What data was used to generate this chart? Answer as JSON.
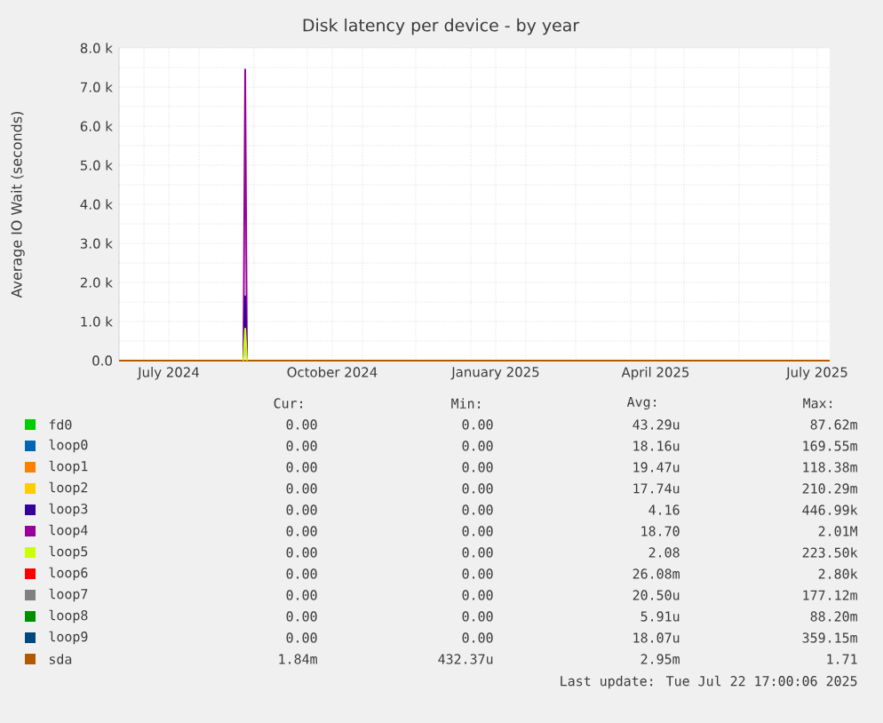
{
  "chart_data": {
    "type": "line",
    "title": "Disk latency per device - by year",
    "ylabel": "Average IO Wait (seconds)",
    "xlim": [
      "2024-06-17",
      "2025-07-22"
    ],
    "xticks": [
      {
        "value": "2024-07-01",
        "label": null
      },
      {
        "value": "2024-07-15",
        "label": "July 2024"
      },
      {
        "value": "2024-08-01",
        "label": null
      },
      {
        "value": "2024-09-01",
        "label": null
      },
      {
        "value": "2024-10-01",
        "label": null
      },
      {
        "value": "2024-10-15",
        "label": "October 2024"
      },
      {
        "value": "2024-11-01",
        "label": null
      },
      {
        "value": "2024-12-01",
        "label": null
      },
      {
        "value": "2025-01-01",
        "label": null
      },
      {
        "value": "2025-01-15",
        "label": "January 2025"
      },
      {
        "value": "2025-02-01",
        "label": null
      },
      {
        "value": "2025-03-01",
        "label": null
      },
      {
        "value": "2025-04-01",
        "label": null
      },
      {
        "value": "2025-04-15",
        "label": "April 2025"
      },
      {
        "value": "2025-05-01",
        "label": null
      },
      {
        "value": "2025-06-01",
        "label": null
      },
      {
        "value": "2025-07-01",
        "label": null
      },
      {
        "value": "2025-07-15",
        "label": "July 2025"
      }
    ],
    "ylim": [
      0,
      8000
    ],
    "yticks": [
      {
        "value": 0,
        "label": "0.0"
      },
      {
        "value": 500,
        "label": null
      },
      {
        "value": 1000,
        "label": "1.0 k"
      },
      {
        "value": 1500,
        "label": null
      },
      {
        "value": 2000,
        "label": "2.0 k"
      },
      {
        "value": 2500,
        "label": null
      },
      {
        "value": 3000,
        "label": "3.0 k"
      },
      {
        "value": 3500,
        "label": null
      },
      {
        "value": 4000,
        "label": "4.0 k"
      },
      {
        "value": 4500,
        "label": null
      },
      {
        "value": 5000,
        "label": "5.0 k"
      },
      {
        "value": 5500,
        "label": null
      },
      {
        "value": 6000,
        "label": "6.0 k"
      },
      {
        "value": 6500,
        "label": null
      },
      {
        "value": 7000,
        "label": "7.0 k"
      },
      {
        "value": 7500,
        "label": null
      },
      {
        "value": 8000,
        "label": "8.0 k"
      }
    ],
    "grid": true,
    "legend": "bottom",
    "marker": "none",
    "line_style": "solid",
    "series": [
      {
        "name": "fd0",
        "color": "#00cc00",
        "values": [
          null
        ]
      },
      {
        "name": "loop0",
        "color": "#0066b3",
        "values": [
          null
        ]
      },
      {
        "name": "loop1",
        "color": "#ff8000",
        "values": [
          null
        ]
      },
      {
        "name": "loop2",
        "color": "#ffcc00",
        "values": [
          null
        ]
      },
      {
        "name": "loop3",
        "color": "#330099",
        "x": [
          "2024-08-26",
          "2024-08-27",
          "2024-08-28"
        ],
        "values": [
          0,
          1650,
          0
        ]
      },
      {
        "name": "loop4",
        "color": "#990099",
        "x": [
          "2024-08-26",
          "2024-08-27",
          "2024-08-28"
        ],
        "values": [
          0,
          7450,
          0
        ]
      },
      {
        "name": "loop5",
        "color": "#ccff00",
        "x": [
          "2024-08-26",
          "2024-08-27",
          "2024-08-28"
        ],
        "values": [
          0,
          820,
          0
        ]
      },
      {
        "name": "loop6",
        "color": "#ff0000",
        "values": [
          null
        ]
      },
      {
        "name": "loop7",
        "color": "#808080",
        "values": [
          null
        ]
      },
      {
        "name": "loop8",
        "color": "#008f00",
        "values": [
          null
        ]
      },
      {
        "name": "loop9",
        "color": "#00487d",
        "values": [
          null
        ]
      },
      {
        "name": "sda",
        "color": "#b35a00",
        "x": [
          "2024-06-17",
          "2025-07-22"
        ],
        "values": [
          0,
          0
        ]
      }
    ],
    "annotations": [
      "Cur:",
      "Min:",
      "Avg:",
      "Max:",
      "0.00",
      "0.00",
      "43.29u",
      "87.62m",
      "0.00",
      "0.00",
      "18.16u",
      "169.55m",
      "0.00",
      "0.00",
      "19.47u",
      "118.38m",
      "0.00",
      "0.00",
      "17.74u",
      "210.29m",
      "0.00",
      "0.00",
      "4.16",
      "446.99k",
      "0.00",
      "0.00",
      "18.70",
      "2.01M",
      "0.00",
      "0.00",
      "2.08",
      "223.50k",
      "0.00",
      "0.00",
      "26.08m",
      "2.80k",
      "0.00",
      "0.00",
      "20.50u",
      "177.12m",
      "0.00",
      "0.00",
      "5.91u",
      "88.20m",
      "0.00",
      "0.00",
      "18.07u",
      "359.15m",
      "1.84m",
      "432.37u",
      "2.95m",
      "1.71",
      "Last update: Tue Jul 22 17:00:06 2025"
    ]
  }
}
